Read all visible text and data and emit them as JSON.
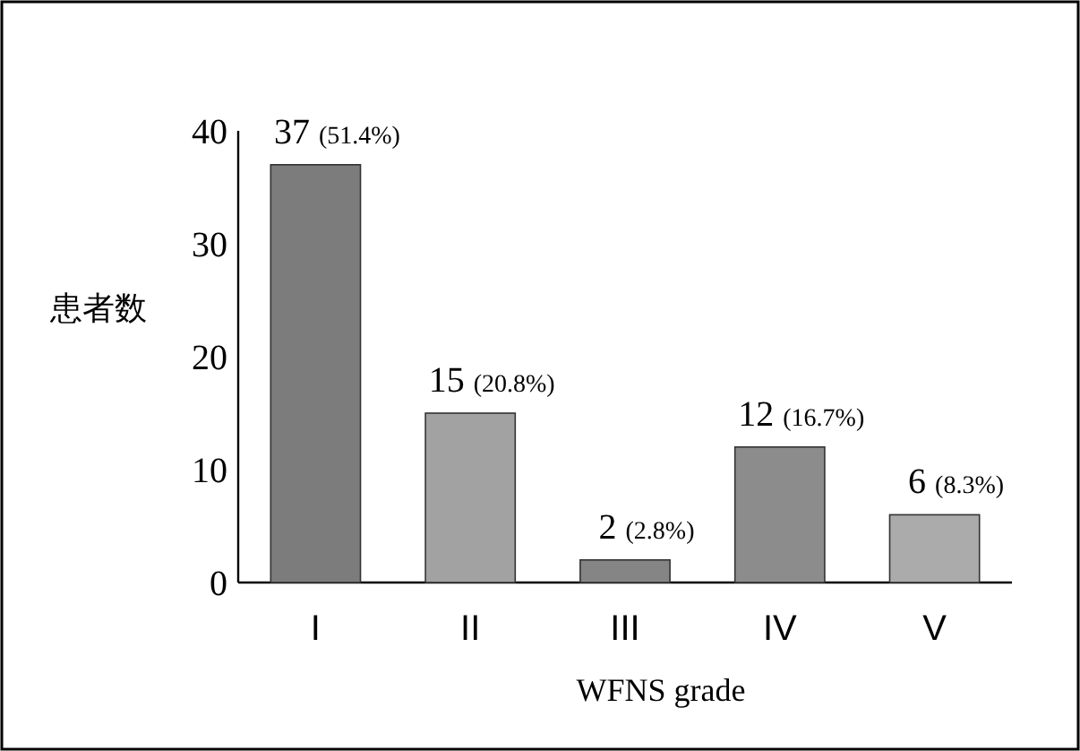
{
  "chart_data": {
    "type": "bar",
    "xlabel": "WFNS grade",
    "ylabel": "患者数",
    "categories": [
      "I",
      "II",
      "III",
      "IV",
      "V"
    ],
    "values": [
      37,
      15,
      2,
      12,
      6
    ],
    "colors": [
      "#7c7c7c",
      "#a2a2a2",
      "#858585",
      "#8c8c8c",
      "#ababab"
    ],
    "value_labels": [
      "37 (51.4%)",
      "15 (20.8%)",
      "2 (2.8%)",
      "12 (16.7%)",
      "6 (8.3%)"
    ],
    "ylim": [
      0,
      40
    ],
    "yticks": [
      0,
      10,
      20,
      30,
      40
    ],
    "grid": false
  }
}
